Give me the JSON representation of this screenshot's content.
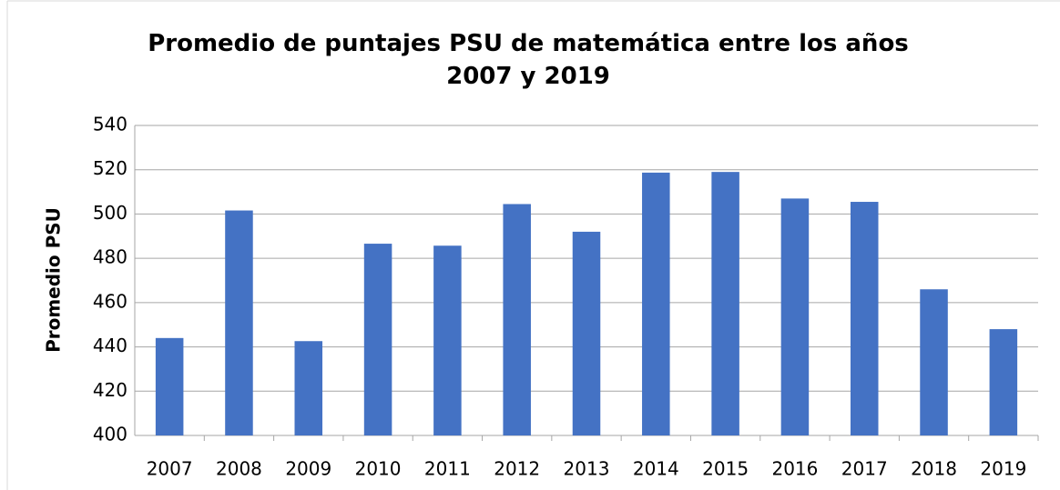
{
  "chart_data": {
    "type": "bar",
    "title": "Promedio de puntajes PSU de matemática entre los años 2007 y 2019",
    "y_label": "Promedio PSU",
    "categories": [
      "2007",
      "2008",
      "2009",
      "2010",
      "2011",
      "2012",
      "2013",
      "2014",
      "2015",
      "2016",
      "2017",
      "2018",
      "2019"
    ],
    "values": [
      444,
      501.6,
      442.6,
      486.6,
      485.7,
      504.5,
      492,
      518.7,
      519,
      507,
      505.5,
      466,
      448
    ],
    "color": "#4472c4",
    "ylim": [
      400,
      540
    ],
    "yticks": [
      400,
      420,
      440,
      460,
      480,
      500,
      520,
      540
    ],
    "grid": true
  }
}
